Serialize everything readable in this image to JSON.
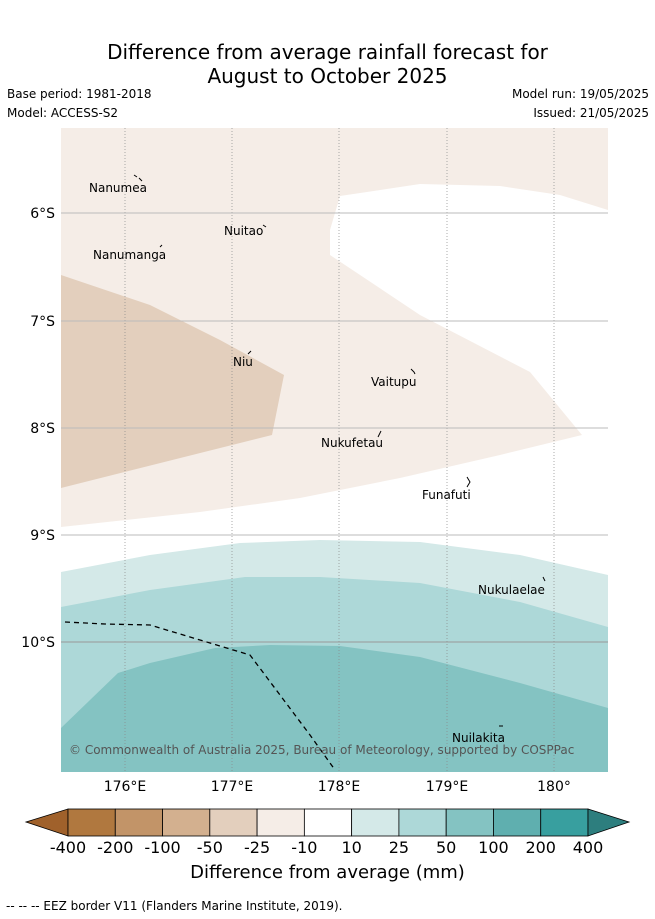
{
  "title_line1": "Difference from average rainfall forecast for",
  "title_line2": "August to October 2025",
  "base_period": "Base period: 1981-2018",
  "model": "Model: ACCESS-S2",
  "model_run": "Model run: 19/05/2025",
  "issued": "Issued: 21/05/2025",
  "attribution": "© Commonwealth of Australia 2025, Bureau of Meteorology, supported by COSPPac",
  "lat_labels": [
    "6°S",
    "7°S",
    "8°S",
    "9°S",
    "10°S"
  ],
  "lon_labels": [
    "176°E",
    "177°E",
    "178°E",
    "179°E",
    "180°"
  ],
  "islands": {
    "nanumea": "Nanumea",
    "nuitao": "Nuitao",
    "nanumanga": "Nanumanga",
    "niu": "Niu",
    "vaitupu": "Vaitupu",
    "nukufetau": "Nukufetau",
    "funafuti": "Funafuti",
    "nukulaelae": "Nukulaelae",
    "nuilakita": "Nuilakita"
  },
  "colorbar": {
    "labels": [
      "-400",
      "-200",
      "-100",
      "-50",
      "-25",
      "-10",
      "10",
      "25",
      "50",
      "100",
      "200",
      "400"
    ],
    "colors": [
      "#a0612b",
      "#b0783f",
      "#c29468",
      "#d3b08f",
      "#e3cfbd",
      "#f5ede7",
      "#ffffff",
      "#d4e9e8",
      "#add8d8",
      "#84c3c2",
      "#5fafaf",
      "#389f9f",
      "#2d7e7e"
    ],
    "title": "Difference from average (mm)"
  },
  "footer": "-- -- -- EEZ border V11 (Flanders Marine Institute, 2019)."
}
